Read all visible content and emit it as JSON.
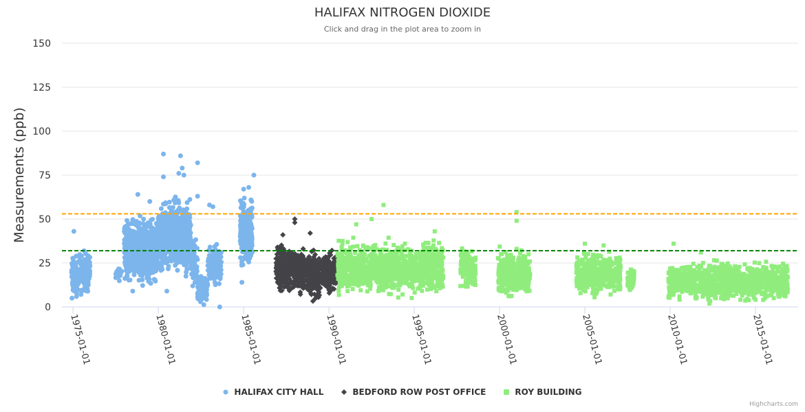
{
  "chart_data": {
    "type": "scatter",
    "title": "HALIFAX NITROGEN DIOXIDE",
    "subtitle": "Click and drag in the plot area to zoom in",
    "ylabel": "Measurements (ppb)",
    "xlabel": "",
    "ylim": [
      0,
      150
    ],
    "xlim": [
      1974.35,
      2017.5
    ],
    "yticks": [
      "0",
      "25",
      "50",
      "75",
      "100",
      "125",
      "150"
    ],
    "ytick_values": [
      0,
      25,
      50,
      75,
      100,
      125,
      150
    ],
    "xticks": [
      "1975-01-01",
      "1980-01-01",
      "1985-01-01",
      "1990-01-01",
      "1995-01-01",
      "2000-01-01",
      "2005-01-01",
      "2010-01-01",
      "2015-01-01"
    ],
    "xtick_values": [
      1975,
      1980,
      1985,
      1990,
      1995,
      2000,
      2005,
      2010,
      2015
    ],
    "grid": true,
    "legend_placement": "bottom-center",
    "reference_lines": [
      {
        "value": 53,
        "color": "#FFA500"
      },
      {
        "value": 32,
        "color": "#008000"
      }
    ],
    "series": [
      {
        "name": "HALIFAX CITY HALL",
        "color": "#7CB5EC",
        "marker": "circle",
        "clusters": [
          {
            "x": [
              1974.9,
              1975.3
            ],
            "y": [
              1,
              33
            ],
            "n": 70
          },
          {
            "x": [
              1975.3,
              1976.0
            ],
            "y": [
              4,
              35
            ],
            "n": 110
          },
          {
            "x": [
              1977.5,
              1977.9
            ],
            "y": [
              14,
              25
            ],
            "n": 20
          },
          {
            "x": [
              1978.0,
              1980.0
            ],
            "y": [
              9,
              55
            ],
            "n": 650
          },
          {
            "x": [
              1980.0,
              1981.9
            ],
            "y": [
              14,
              66
            ],
            "n": 650
          },
          {
            "x": [
              1981.9,
              1982.3
            ],
            "y": [
              7,
              42
            ],
            "n": 80
          },
          {
            "x": [
              1982.3,
              1982.9
            ],
            "y": [
              0,
              20
            ],
            "n": 90
          },
          {
            "x": [
              1982.9,
              1983.7
            ],
            "y": [
              9,
              40
            ],
            "n": 110
          },
          {
            "x": [
              1984.8,
              1985.5
            ],
            "y": [
              19,
              65
            ],
            "n": 300
          }
        ],
        "outliers": [
          [
            1975.05,
            43
          ],
          [
            1978.8,
            64
          ],
          [
            1979.5,
            60
          ],
          [
            1980.3,
            87
          ],
          [
            1980.3,
            74
          ],
          [
            1981.3,
            86
          ],
          [
            1981.4,
            79
          ],
          [
            1981.2,
            76
          ],
          [
            1981.5,
            75
          ],
          [
            1982.3,
            82
          ],
          [
            1982.3,
            63
          ],
          [
            1983.0,
            58
          ],
          [
            1983.2,
            57
          ],
          [
            1985.6,
            75
          ],
          [
            1985.3,
            68
          ],
          [
            1985.0,
            67
          ],
          [
            1984.9,
            14
          ],
          [
            1978.5,
            9
          ],
          [
            1980.5,
            9
          ],
          [
            1983.6,
            0
          ]
        ]
      },
      {
        "name": "BEDFORD ROW POST OFFICE",
        "color": "#434348",
        "marker": "diamond",
        "clusters": [
          {
            "x": [
              1986.9,
              1987.7
            ],
            "y": [
              4,
              40
            ],
            "n": 200
          },
          {
            "x": [
              1987.8,
              1988.6
            ],
            "y": [
              5,
              36
            ],
            "n": 200
          },
          {
            "x": [
              1988.7,
              1989.5
            ],
            "y": [
              0,
              35
            ],
            "n": 200
          },
          {
            "x": [
              1989.6,
              1990.4
            ],
            "y": [
              6,
              34
            ],
            "n": 200
          }
        ],
        "outliers": [
          [
            1988.0,
            50
          ],
          [
            1988.0,
            48
          ],
          [
            1988.9,
            42
          ],
          [
            1987.3,
            41
          ]
        ]
      },
      {
        "name": "ROY BUILDING",
        "color": "#90ED7D",
        "marker": "square",
        "clusters": [
          {
            "x": [
              1990.5,
              1996.7
            ],
            "y": [
              4,
              40
            ],
            "n": 1100
          },
          {
            "x": [
              1997.7,
              1998.6
            ],
            "y": [
              8,
              38
            ],
            "n": 140
          },
          {
            "x": [
              1999.9,
              2001.8
            ],
            "y": [
              3,
              36
            ],
            "n": 320
          },
          {
            "x": [
              2004.5,
              2007.1
            ],
            "y": [
              4,
              33
            ],
            "n": 400
          },
          {
            "x": [
              2007.5,
              2007.9
            ],
            "y": [
              5,
              25
            ],
            "n": 50
          },
          {
            "x": [
              2009.9,
              2016.9
            ],
            "y": [
              1,
              28
            ],
            "n": 1000
          }
        ],
        "outliers": [
          [
            1993.2,
            58
          ],
          [
            1992.5,
            50
          ],
          [
            1991.6,
            47
          ],
          [
            2001.0,
            54
          ],
          [
            2001.0,
            49
          ],
          [
            2005.0,
            36
          ],
          [
            2006.1,
            35
          ],
          [
            2010.2,
            36
          ],
          [
            1996.2,
            43
          ],
          [
            2011.8,
            31
          ]
        ]
      }
    ]
  },
  "credit": "Highcharts.com"
}
